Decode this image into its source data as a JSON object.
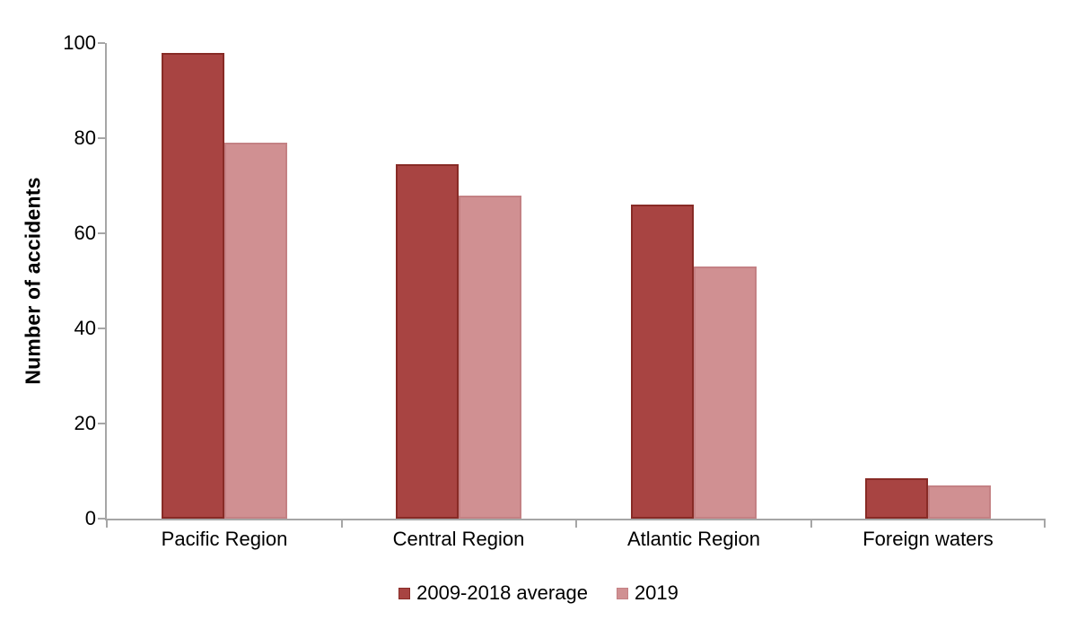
{
  "chart_data": {
    "type": "bar",
    "title": "",
    "xlabel": "",
    "ylabel": "Number of accidents",
    "categories": [
      "Pacific Region",
      "Central Region",
      "Atlantic Region",
      "Foreign waters"
    ],
    "series": [
      {
        "name": "2009-2018 average",
        "values": [
          98,
          74.5,
          66,
          8.5
        ],
        "fill": "#A84442",
        "border": "#882B26"
      },
      {
        "name": "2019",
        "values": [
          79,
          68,
          53,
          7
        ],
        "fill": "#D09092",
        "border": "#C48184"
      }
    ],
    "ylim": [
      0,
      100
    ],
    "yticks": [
      0,
      20,
      40,
      60,
      80,
      100
    ],
    "grid": false,
    "legend_position": "bottom",
    "axis_color": "#A6A6A6",
    "text_color": "#000000",
    "background_color": "#FFFFFF"
  }
}
